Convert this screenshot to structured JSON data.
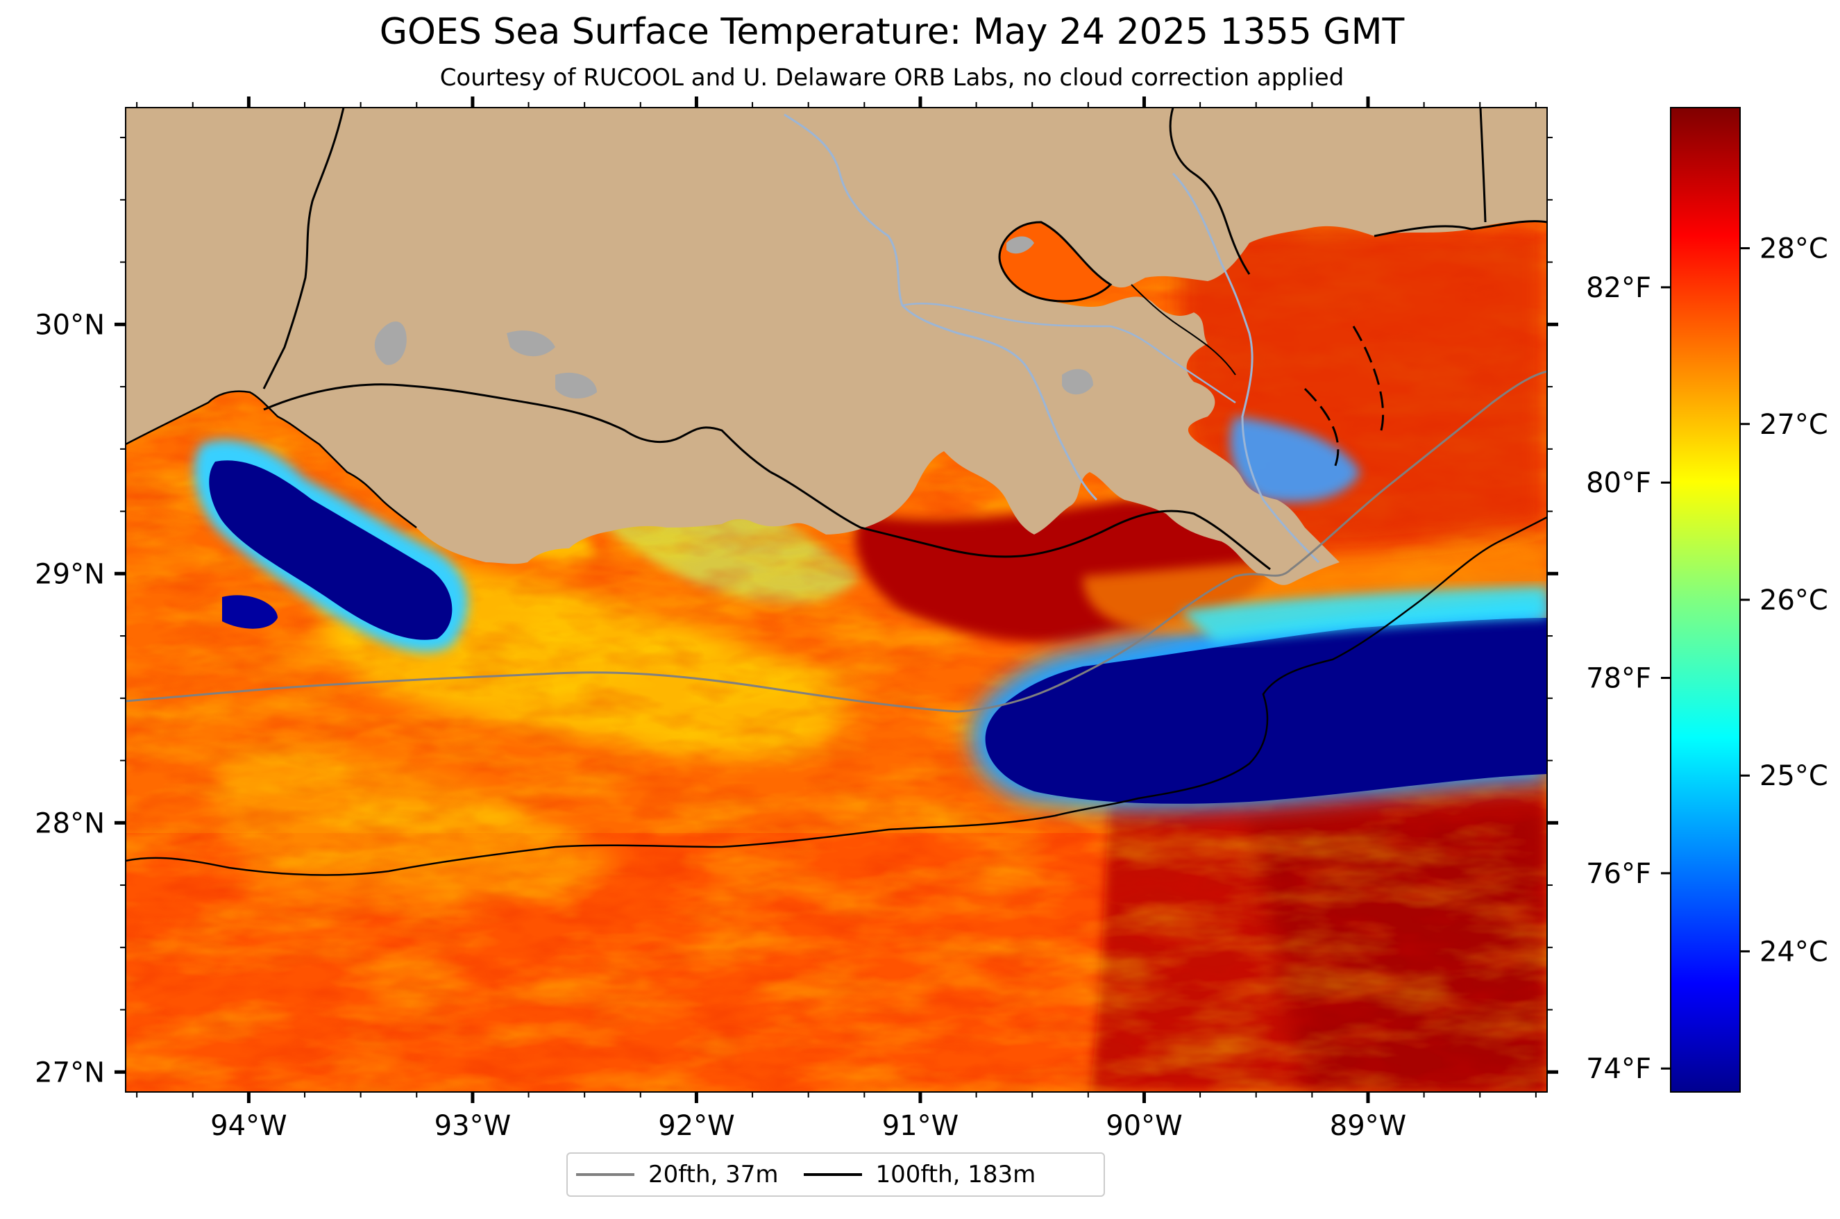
{
  "figure": {
    "title": "GOES Sea Surface Temperature: May 24 2025 1355 GMT",
    "subtitle": "Courtesy of RUCOOL and U. Delaware ORB Labs, no cloud correction applied"
  },
  "map": {
    "lon_range": [
      -94.55,
      -88.2
    ],
    "lat_range": [
      26.92,
      30.87
    ],
    "lon_ticks": [
      {
        "value": -94,
        "label": "94°W"
      },
      {
        "value": -93,
        "label": "93°W"
      },
      {
        "value": -92,
        "label": "92°W"
      },
      {
        "value": -91,
        "label": "91°W"
      },
      {
        "value": -90,
        "label": "90°W"
      },
      {
        "value": -89,
        "label": "89°W"
      }
    ],
    "lat_ticks": [
      {
        "value": 30,
        "label": "30°N"
      },
      {
        "value": 29,
        "label": "29°N"
      },
      {
        "value": 28,
        "label": "28°N"
      },
      {
        "value": 27,
        "label": "27°N"
      }
    ],
    "colors": {
      "land": "#cfb08a",
      "lake": "#a8a8a8",
      "river": "#9bb5d6",
      "cold": "#00008b",
      "warm": "#ff5a00",
      "hot": "#b40000"
    }
  },
  "colorbar": {
    "celsius_ticks": [
      {
        "value": 24,
        "label": "24°C"
      },
      {
        "value": 25,
        "label": "25°C"
      },
      {
        "value": 26,
        "label": "26°C"
      },
      {
        "value": 27,
        "label": "27°C"
      },
      {
        "value": 28,
        "label": "28°C"
      }
    ],
    "fahrenheit_ticks": [
      {
        "value": 74,
        "label": "74°F"
      },
      {
        "value": 76,
        "label": "76°F"
      },
      {
        "value": 78,
        "label": "78°F"
      },
      {
        "value": 80,
        "label": "80°F"
      },
      {
        "value": 82,
        "label": "82°F"
      }
    ],
    "range_c": [
      23.2,
      28.8
    ],
    "colormap": "jet"
  },
  "legend": {
    "items": [
      {
        "label": "20fth, 37m",
        "color": "#808080"
      },
      {
        "label": "100fth, 183m",
        "color": "#000000"
      }
    ]
  }
}
